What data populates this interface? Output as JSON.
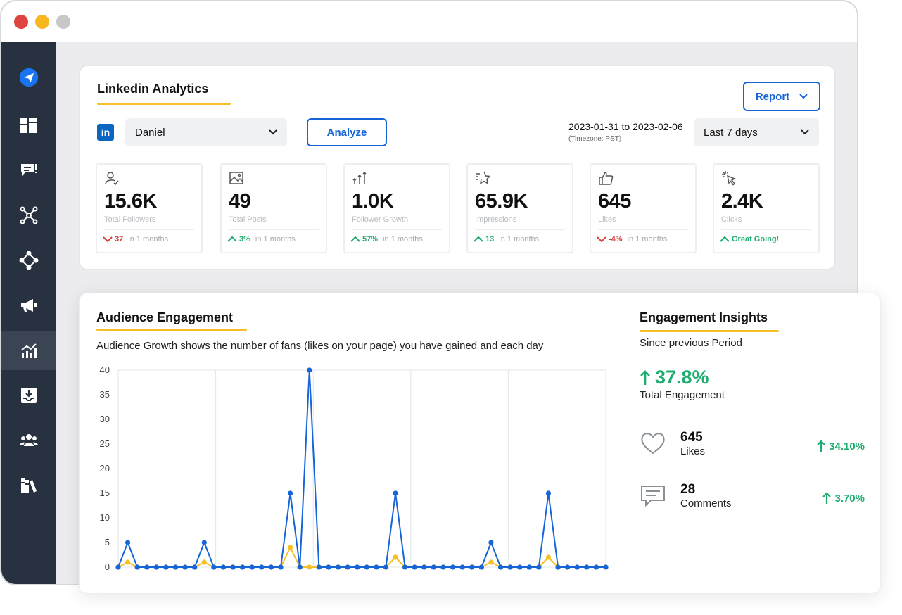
{
  "sidebar": {
    "items": [
      {
        "icon": "send-icon"
      },
      {
        "icon": "dashboard-icon"
      },
      {
        "icon": "messages-icon"
      },
      {
        "icon": "network-icon"
      },
      {
        "icon": "hub-icon"
      },
      {
        "icon": "megaphone-icon"
      },
      {
        "icon": "analytics-icon",
        "active": true
      },
      {
        "icon": "inbox-download-icon"
      },
      {
        "icon": "team-icon"
      },
      {
        "icon": "library-icon"
      }
    ]
  },
  "header": {
    "title": "Linkedin Analytics",
    "report_label": "Report",
    "account_select": "Daniel",
    "analyze_label": "Analyze",
    "date_range": "2023-01-31 to 2023-02-06",
    "timezone": "(Timezone: PST)",
    "period_select": "Last 7 days"
  },
  "stats": [
    {
      "icon": "follower-icon",
      "value": "15.6K",
      "label": "Total Followers",
      "dir": "down",
      "change": "37",
      "suffix": "in 1 months"
    },
    {
      "icon": "image-icon",
      "value": "49",
      "label": "Total Posts",
      "dir": "up",
      "change": "3%",
      "suffix": "in 1 months"
    },
    {
      "icon": "growth-icon",
      "value": "1.0K",
      "label": "Follower Growth",
      "dir": "up",
      "change": "57%",
      "suffix": "in 1 months"
    },
    {
      "icon": "star-icon",
      "value": "65.9K",
      "label": "Impressions",
      "dir": "up",
      "change": "13",
      "suffix": "in 1 months"
    },
    {
      "icon": "thumbs-up-icon",
      "value": "645",
      "label": "Likes",
      "dir": "down",
      "change": "-4%",
      "suffix": "in 1 months"
    },
    {
      "icon": "click-icon",
      "value": "2.4K",
      "label": "Clicks",
      "dir": "up",
      "change": "Great Going!",
      "suffix": ""
    }
  ],
  "engagement": {
    "title": "Audience Engagement",
    "subtitle": "Audience Growth shows the number of fans (likes on your page) you have gained and each day"
  },
  "chart_data": {
    "type": "line",
    "title": "",
    "xlabel": "",
    "ylabel": "",
    "ylim": [
      0,
      40
    ],
    "yticks": [
      0,
      5,
      10,
      15,
      20,
      25,
      30,
      35,
      40
    ],
    "grid": true,
    "series": [
      {
        "color": "#1565d8",
        "values": [
          0,
          5,
          0,
          0,
          0,
          0,
          0,
          0,
          0,
          5,
          0,
          0,
          0,
          0,
          0,
          0,
          0,
          0,
          15,
          0,
          40,
          0,
          0,
          0,
          0,
          0,
          0,
          0,
          0,
          15,
          0,
          0,
          0,
          0,
          0,
          0,
          0,
          0,
          0,
          5,
          0,
          0,
          0,
          0,
          0,
          15,
          0,
          0,
          0,
          0,
          0,
          0
        ]
      },
      {
        "color": "#f6bf26",
        "values": [
          0,
          1,
          0,
          0,
          0,
          0,
          0,
          0,
          0,
          1,
          0,
          0,
          0,
          0,
          0,
          0,
          0,
          0,
          4,
          0,
          0,
          0,
          0,
          0,
          0,
          0,
          0,
          0,
          0,
          2,
          0,
          0,
          0,
          0,
          0,
          0,
          0,
          0,
          0,
          1,
          0,
          0,
          0,
          0,
          0,
          2,
          0,
          0,
          0,
          0,
          0,
          0
        ]
      }
    ]
  },
  "insights": {
    "title": "Engagement Insights",
    "since": "Since previous Period",
    "total_change": "37.8%",
    "total_label": "Total Engagement",
    "metrics": [
      {
        "icon": "heart-icon",
        "value": "645",
        "label": "Likes",
        "change": "34.10%"
      },
      {
        "icon": "comment-icon",
        "value": "28",
        "label": "Comments",
        "change": "3.70%"
      }
    ]
  },
  "colors": {
    "accent_blue": "#1565d8",
    "accent_yellow": "#f6bf26",
    "positive": "#1fad6f",
    "negative": "#d83a3a",
    "sidebar": "#283140"
  }
}
